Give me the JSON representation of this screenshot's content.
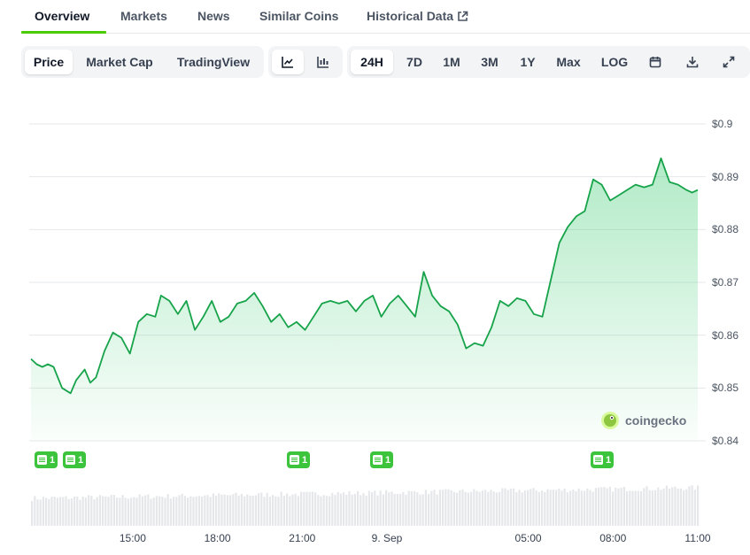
{
  "tabs": [
    {
      "label": "Overview",
      "active": true
    },
    {
      "label": "Markets"
    },
    {
      "label": "News"
    },
    {
      "label": "Similar Coins"
    },
    {
      "label": "Historical Data",
      "external": true
    }
  ],
  "chart_type_buttons": [
    {
      "label": "Price",
      "selected": true
    },
    {
      "label": "Market Cap"
    },
    {
      "label": "TradingView"
    }
  ],
  "style_buttons": [
    {
      "icon": "line-chart-icon",
      "selected": true
    },
    {
      "icon": "candlestick-icon"
    }
  ],
  "range_buttons": [
    {
      "label": "24H",
      "selected": true
    },
    {
      "label": "7D"
    },
    {
      "label": "1M"
    },
    {
      "label": "3M"
    },
    {
      "label": "1Y"
    },
    {
      "label": "Max"
    },
    {
      "label": "LOG"
    }
  ],
  "tool_icons": [
    "calendar-icon",
    "download-icon",
    "fullscreen-icon"
  ],
  "watermark": "coingecko",
  "colors": {
    "line": "#16a34a",
    "accent": "#4bcc00",
    "badge": "#3cc43c"
  },
  "news_badges": [
    "1",
    "1",
    "1",
    "1",
    "1"
  ],
  "chart_data": {
    "type": "line",
    "y_tick_labels": [
      "$0.9",
      "$0.89",
      "$0.88",
      "$0.87",
      "$0.86",
      "$0.85",
      "$0.84"
    ],
    "y_ticks": [
      0.9,
      0.89,
      0.88,
      0.87,
      0.86,
      0.85,
      0.84
    ],
    "ylim": [
      0.84,
      0.9
    ],
    "x_tick_labels": [
      "15:00",
      "18:00",
      "21:00",
      "9. Sep",
      "05:00",
      "08:00",
      "11:00"
    ],
    "x_ticks_hours": [
      15,
      18,
      21,
      24,
      29,
      32,
      35
    ],
    "xlim_hours": [
      11.4,
      35.0
    ],
    "grid": true,
    "series": [
      {
        "x_hours": [
          11.4,
          11.6,
          11.8,
          12.0,
          12.2,
          12.5,
          12.8,
          13.0,
          13.3,
          13.5,
          13.7,
          14.0,
          14.3,
          14.6,
          14.9,
          15.2,
          15.5,
          15.8,
          16.0,
          16.3,
          16.6,
          16.9,
          17.2,
          17.5,
          17.8,
          18.1,
          18.4,
          18.7,
          19.0,
          19.3,
          19.6,
          19.9,
          20.2,
          20.5,
          20.8,
          21.1,
          21.4,
          21.7,
          22.0,
          22.3,
          22.6,
          22.9,
          23.2,
          23.5,
          23.8,
          24.1,
          24.4,
          24.7,
          25.0,
          25.3,
          25.6,
          25.9,
          26.2,
          26.5,
          26.8,
          27.1,
          27.4,
          27.7,
          28.0,
          28.3,
          28.6,
          28.9,
          29.2,
          29.5,
          29.8,
          30.1,
          30.4,
          30.7,
          31.0,
          31.3,
          31.6,
          31.9,
          32.2,
          32.5,
          32.8,
          33.1,
          33.4,
          33.7,
          34.0,
          34.3,
          34.6,
          34.8,
          35.0
        ],
        "values": [
          0.8555,
          0.8545,
          0.854,
          0.8545,
          0.854,
          0.85,
          0.849,
          0.8515,
          0.8535,
          0.851,
          0.852,
          0.857,
          0.8605,
          0.8595,
          0.8565,
          0.8625,
          0.864,
          0.8635,
          0.8675,
          0.8665,
          0.864,
          0.8665,
          0.861,
          0.8635,
          0.8665,
          0.8625,
          0.8635,
          0.866,
          0.8665,
          0.868,
          0.8655,
          0.8625,
          0.864,
          0.8615,
          0.8625,
          0.861,
          0.8635,
          0.866,
          0.8665,
          0.866,
          0.8665,
          0.8645,
          0.8665,
          0.8675,
          0.8635,
          0.866,
          0.8675,
          0.8655,
          0.8635,
          0.872,
          0.8675,
          0.8655,
          0.8645,
          0.862,
          0.8575,
          0.8585,
          0.858,
          0.8615,
          0.8665,
          0.8655,
          0.867,
          0.8665,
          0.864,
          0.8635,
          0.8705,
          0.8775,
          0.8805,
          0.8825,
          0.8835,
          0.8895,
          0.8885,
          0.8855,
          0.8865,
          0.8875,
          0.8885,
          0.888,
          0.8885,
          0.8935,
          0.889,
          0.8885,
          0.8875,
          0.887,
          0.8875
        ]
      }
    ],
    "volume": {
      "type": "bar",
      "visible": true
    }
  }
}
